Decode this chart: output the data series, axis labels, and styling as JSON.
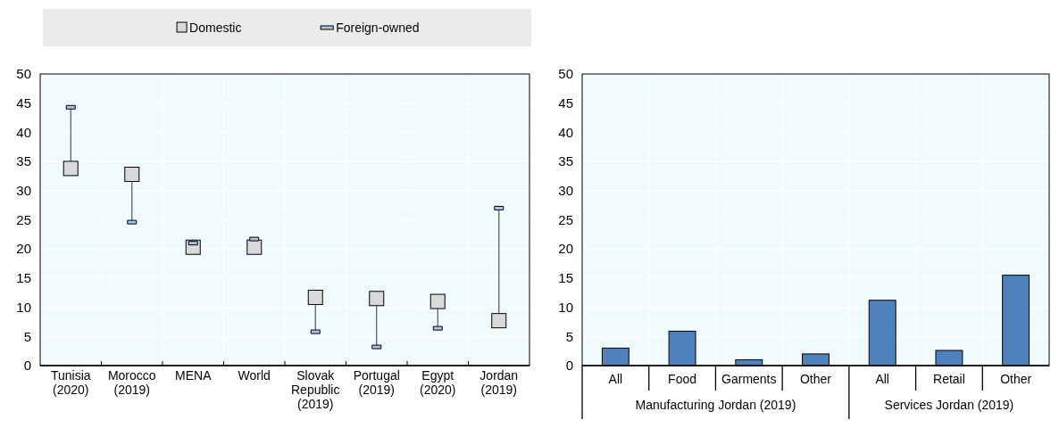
{
  "chart_data": [
    {
      "type": "scatter",
      "categories": [
        "Tunisia (2020)",
        "Morocco (2019)",
        "MENA",
        "World",
        "Slovak Republic (2019)",
        "Portugal (2019)",
        "Egypt (2020)",
        "Jordan (2019)"
      ],
      "series": [
        {
          "name": "Domestic",
          "color": "#d9d9d9",
          "marker": "square",
          "values": [
            33.8,
            32.8,
            20.3,
            20.3,
            11.7,
            11.5,
            11.0,
            7.7
          ]
        },
        {
          "name": "Foreign-owned",
          "color": "#a9c4eb",
          "values": [
            44.3,
            24.6,
            21.0,
            21.7,
            5.8,
            3.2,
            6.4,
            27.0
          ]
        }
      ],
      "ylim": [
        0,
        50
      ],
      "yticks": [
        0,
        5,
        10,
        15,
        20,
        25,
        30,
        35,
        40,
        45,
        50
      ],
      "grid": true,
      "legend": "top"
    },
    {
      "type": "bar",
      "categories": [
        "All",
        "Food",
        "Garments",
        "Other",
        "All",
        "Retail",
        "Other"
      ],
      "values": [
        3.0,
        5.9,
        1.0,
        2.0,
        11.2,
        2.6,
        15.5
      ],
      "color": "#4f81bd",
      "ylim": [
        0,
        50
      ],
      "yticks": [
        0,
        5,
        10,
        15,
        20,
        25,
        30,
        35,
        40,
        45,
        50
      ],
      "grid": true,
      "annotations": [
        "Manufacturing Jordan (2019)",
        "Services Jordan (2019)"
      ]
    }
  ]
}
